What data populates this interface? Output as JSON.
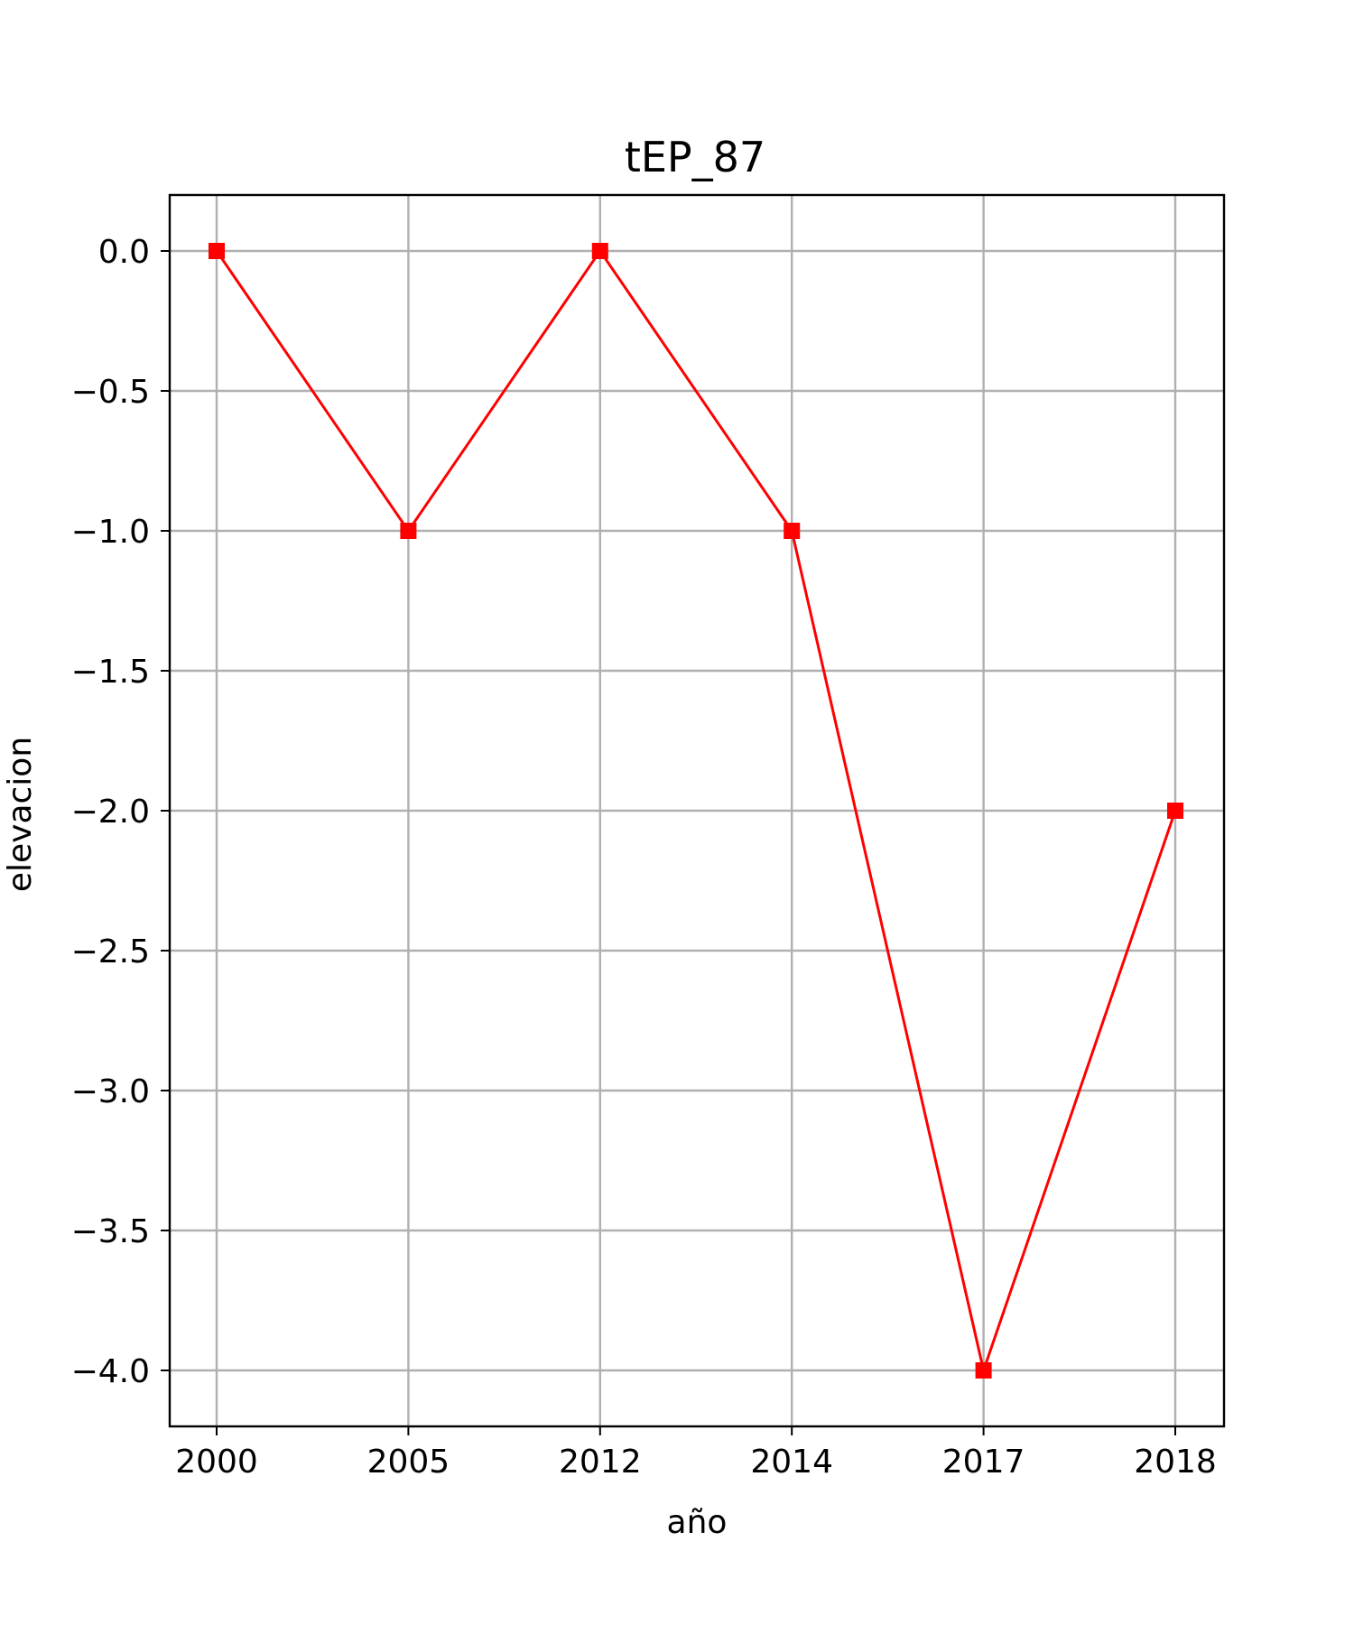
{
  "chart_data": {
    "type": "line",
    "title": "tEP_87",
    "xlabel": "año",
    "ylabel": "elevacion",
    "x_categories": [
      "2000",
      "2005",
      "2012",
      "2014",
      "2017",
      "2018"
    ],
    "series": [
      {
        "values": [
          0.0,
          -1.0,
          0.0,
          -1.0,
          -4.0,
          -2.0
        ],
        "color": "#ff0000",
        "marker": "square"
      }
    ],
    "ylim": [
      -4.2,
      0.2
    ],
    "y_ticks": [
      0.0,
      -0.5,
      -1.0,
      -1.5,
      -2.0,
      -2.5,
      -3.0,
      -3.5,
      -4.0
    ],
    "y_tick_labels": [
      "0.0",
      "−0.5",
      "−1.0",
      "−1.5",
      "−2.0",
      "−2.5",
      "−3.0",
      "−3.5",
      "−4.0"
    ],
    "grid": true,
    "legend": "none"
  }
}
